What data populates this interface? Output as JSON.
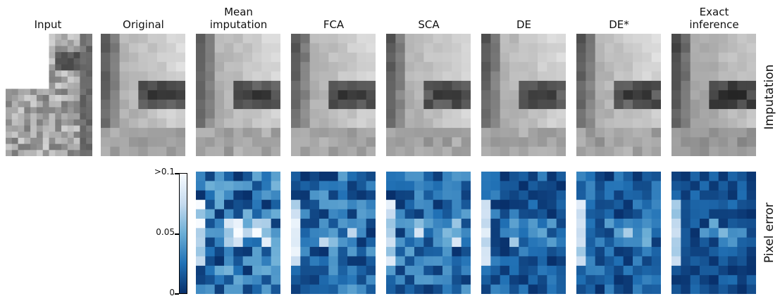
{
  "columns": [
    {
      "lines": [
        "Input"
      ]
    },
    {
      "lines": [
        "Original"
      ]
    },
    {
      "lines": [
        "Mean",
        "imputation"
      ]
    },
    {
      "lines": [
        "FCA"
      ]
    },
    {
      "lines": [
        "SCA"
      ]
    },
    {
      "lines": [
        "DE"
      ]
    },
    {
      "lines": [
        "DE*"
      ]
    },
    {
      "lines": [
        "Exact",
        "inference"
      ]
    }
  ],
  "row_labels": {
    "imputation": "Imputation",
    "error": "Pixel error"
  },
  "colorbar": {
    "ticks": [
      ">0.1",
      "0.05",
      "0"
    ],
    "colormap": [
      "#08306b",
      "#2171b5",
      "#6baed6",
      "#c6dbef",
      "#f7fbff"
    ]
  }
}
